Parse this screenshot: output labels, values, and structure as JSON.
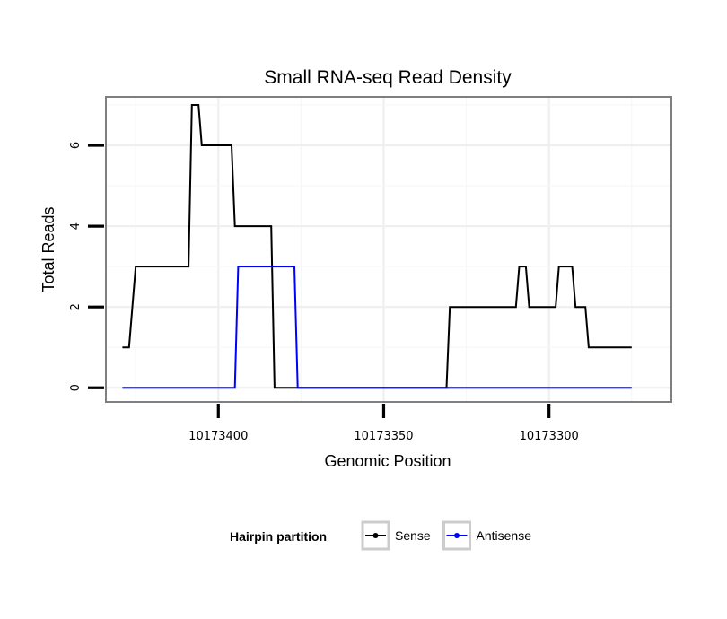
{
  "chart_data": {
    "type": "line",
    "title": "Small RNA-seq Read Density",
    "xlabel": "Genomic Position",
    "ylabel": "Total Reads",
    "x_reversed": true,
    "xlim": [
      10173434,
      10173263
    ],
    "ylim": [
      -0.35,
      7.2
    ],
    "xticks": [
      10173400,
      10173350,
      10173300
    ],
    "xtick_labels": [
      "10173400",
      "10173350",
      "10173300"
    ],
    "yticks": [
      0,
      2,
      4,
      6
    ],
    "ytick_labels": [
      "0",
      "2",
      "4",
      "6"
    ],
    "grid": true,
    "legend": {
      "title": "Hairpin partition",
      "position": "bottom"
    },
    "series": [
      {
        "name": "Sense",
        "color": "#000000",
        "points": [
          [
            10173429,
            1
          ],
          [
            10173427,
            1
          ],
          [
            10173425,
            3
          ],
          [
            10173409,
            3
          ],
          [
            10173408,
            7
          ],
          [
            10173406,
            7
          ],
          [
            10173405,
            6
          ],
          [
            10173396,
            6
          ],
          [
            10173395,
            4
          ],
          [
            10173384,
            4
          ],
          [
            10173383,
            0
          ],
          [
            10173331,
            0
          ],
          [
            10173330,
            2
          ],
          [
            10173310,
            2
          ],
          [
            10173309,
            3
          ],
          [
            10173307,
            3
          ],
          [
            10173306,
            2
          ],
          [
            10173298,
            2
          ],
          [
            10173297,
            3
          ],
          [
            10173293,
            3
          ],
          [
            10173292,
            2
          ],
          [
            10173289,
            2
          ],
          [
            10173288,
            1
          ],
          [
            10173275,
            1
          ]
        ]
      },
      {
        "name": "Antisense",
        "color": "#0000ff",
        "points": [
          [
            10173429,
            0
          ],
          [
            10173395,
            0
          ],
          [
            10173394,
            3
          ],
          [
            10173377,
            3
          ],
          [
            10173376,
            0
          ],
          [
            10173275,
            0
          ]
        ]
      }
    ]
  }
}
